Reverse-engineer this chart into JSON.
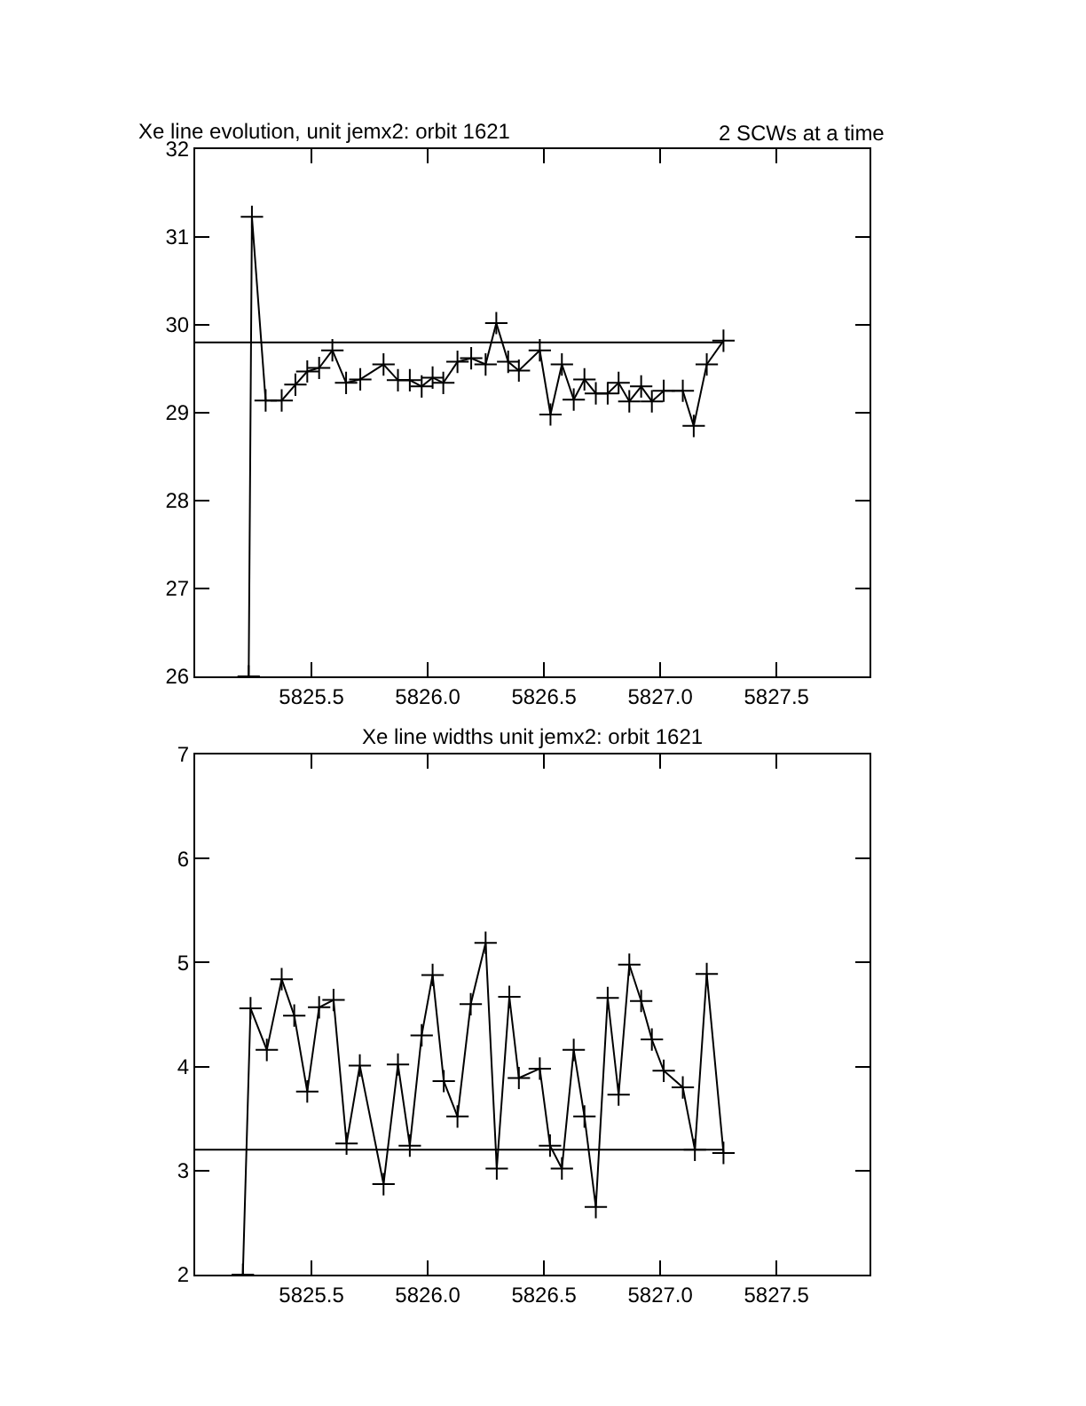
{
  "chart_data": [
    {
      "type": "line",
      "title": "Xe line evolution, unit jemx2: orbit 1621",
      "annotations": [
        "2 SCWs at a time"
      ],
      "x": [
        5825.23,
        5825.244,
        5825.303,
        5825.372,
        5825.431,
        5825.482,
        5825.533,
        5825.59,
        5825.649,
        5825.71,
        5825.81,
        5825.872,
        5825.923,
        5825.974,
        5826.021,
        5826.067,
        5826.128,
        5826.187,
        5826.249,
        5826.295,
        5826.346,
        5826.392,
        5826.482,
        5826.528,
        5826.577,
        5826.628,
        5826.674,
        5826.723,
        5826.774,
        5826.821,
        5826.867,
        5826.918,
        5826.964,
        5827.015,
        5827.097,
        5827.144,
        5827.2,
        5827.272
      ],
      "series": [
        {
          "color": "#000000",
          "values": [
            26,
            31.23,
            29.14,
            29.14,
            29.32,
            29.47,
            29.51,
            29.71,
            29.34,
            29.38,
            29.55,
            29.37,
            29.37,
            29.3,
            29.4,
            29.34,
            29.58,
            29.62,
            29.55,
            30.02,
            29.58,
            29.48,
            29.71,
            28.98,
            29.55,
            29.15,
            29.38,
            29.22,
            29.22,
            29.34,
            29.13,
            29.3,
            29.13,
            29.25,
            29.25,
            28.85,
            29.55,
            29.82
          ]
        }
      ],
      "xlim": [
        5825.0,
        5827.9
      ],
      "xticks": [
        {
          "value": 5825.5,
          "label": "5825.5"
        },
        {
          "value": 5826,
          "label": "5826.0"
        },
        {
          "value": 5826.5,
          "label": "5826.5"
        },
        {
          "value": 5827,
          "label": "5827.0"
        },
        {
          "value": 5827.5,
          "label": "5827.5"
        }
      ],
      "ylim": [
        26,
        32
      ],
      "yticks": [
        26,
        27,
        28,
        29,
        30,
        31,
        32
      ],
      "ref_lines": [
        {
          "axis": "y",
          "value": 29.8,
          "color": "#000000"
        }
      ],
      "marker": "cross",
      "line_style": "solid"
    },
    {
      "type": "line",
      "title": "Xe line widths unit jemx2: orbit 1621",
      "x": [
        5825.205,
        5825.238,
        5825.308,
        5825.372,
        5825.426,
        5825.482,
        5825.533,
        5825.595,
        5825.651,
        5825.708,
        5825.81,
        5825.872,
        5825.923,
        5825.974,
        5826.021,
        5826.069,
        5826.128,
        5826.185,
        5826.249,
        5826.297,
        5826.351,
        5826.392,
        5826.482,
        5826.526,
        5826.577,
        5826.628,
        5826.674,
        5826.723,
        5826.774,
        5826.821,
        5826.867,
        5826.918,
        5826.964,
        5827.015,
        5827.097,
        5827.149,
        5827.2,
        5827.272
      ],
      "series": [
        {
          "color": "#000000",
          "values": [
            2,
            4.56,
            4.16,
            4.84,
            4.49,
            3.76,
            4.57,
            4.64,
            3.26,
            4.01,
            2.87,
            4.02,
            3.24,
            4.3,
            4.88,
            3.86,
            3.52,
            4.6,
            5.19,
            3.02,
            4.67,
            3.89,
            3.98,
            3.24,
            3.02,
            4.16,
            3.52,
            2.65,
            4.66,
            3.73,
            4.98,
            4.63,
            4.26,
            3.96,
            3.8,
            3.2,
            4.89,
            3.17
          ]
        }
      ],
      "xlim": [
        5825.0,
        5827.9
      ],
      "xticks": [
        {
          "value": 5825.5,
          "label": "5825.5"
        },
        {
          "value": 5826,
          "label": "5826.0"
        },
        {
          "value": 5826.5,
          "label": "5826.5"
        },
        {
          "value": 5827,
          "label": "5827.0"
        },
        {
          "value": 5827.5,
          "label": "5827.5"
        }
      ],
      "ylim": [
        2,
        7
      ],
      "yticks": [
        2,
        3,
        4,
        5,
        6,
        7
      ],
      "ref_lines": [
        {
          "axis": "y",
          "value": 3.2,
          "color": "#000000"
        }
      ],
      "marker": "cross",
      "line_style": "solid"
    }
  ]
}
